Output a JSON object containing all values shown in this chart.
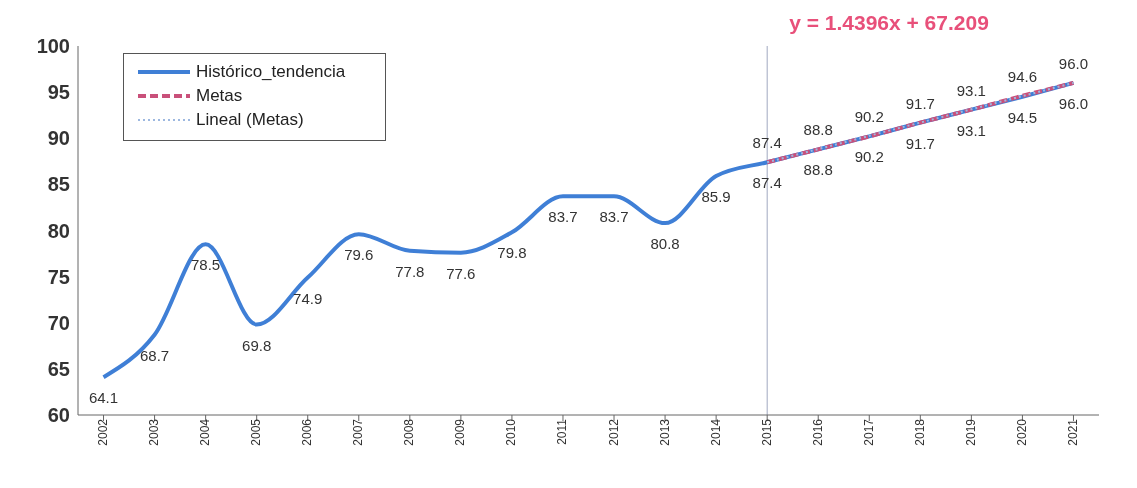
{
  "chart_data": {
    "type": "line",
    "categories": [
      "2002",
      "2003",
      "2004",
      "2005",
      "2006",
      "2007",
      "2008",
      "2009",
      "2010",
      "2011",
      "2012",
      "2013",
      "2014",
      "2015",
      "2016",
      "2017",
      "2018",
      "2019",
      "2020",
      "2021"
    ],
    "series": [
      {
        "name": "Histórico_tendencia",
        "color": "#3f7fd6",
        "line_style": "solid",
        "values": [
          64.1,
          68.7,
          78.5,
          69.8,
          74.9,
          79.6,
          77.8,
          77.6,
          79.8,
          83.7,
          83.7,
          80.8,
          85.9,
          87.4,
          88.8,
          90.2,
          91.7,
          93.1,
          94.5,
          96.0
        ],
        "value_labels": [
          "64.1",
          "68.7",
          "78.5",
          "69.8",
          "74.9",
          "79.6",
          "77.8",
          "77.6",
          "79.8",
          "83.7",
          "83.7",
          "80.8",
          "85.9",
          "87.4",
          "88.8",
          "90.2",
          "91.7",
          "93.1",
          "94.5",
          "96.0"
        ]
      },
      {
        "name": "Metas",
        "color": "#c9507a",
        "line_style": "dashed",
        "values": [
          null,
          null,
          null,
          null,
          null,
          null,
          null,
          null,
          null,
          null,
          null,
          null,
          null,
          87.4,
          88.8,
          90.2,
          91.7,
          93.1,
          94.6,
          96.0
        ],
        "value_labels": [
          null,
          null,
          null,
          null,
          null,
          null,
          null,
          null,
          null,
          null,
          null,
          null,
          null,
          "87.4",
          "88.8",
          "90.2",
          "91.7",
          "93.1",
          "94.6",
          "96.0"
        ]
      },
      {
        "name": "Lineal (Metas)",
        "color": "#9db8e0",
        "line_style": "dotted",
        "type": "line",
        "values": [
          null,
          null,
          null,
          null,
          null,
          null,
          null,
          null,
          null,
          null,
          null,
          null,
          null,
          87.4,
          null,
          null,
          null,
          null,
          null,
          96.0
        ]
      }
    ],
    "annotations": [
      "y = 1.4396x + 67.209"
    ],
    "ref_lines": [
      {
        "axis": "x",
        "value": "2015",
        "color": "#a0a8c0"
      }
    ],
    "ylim": [
      60,
      100
    ],
    "yticks": [
      60,
      65,
      70,
      75,
      80,
      85,
      90,
      95,
      100
    ],
    "legend": "top left",
    "marker": "none"
  }
}
